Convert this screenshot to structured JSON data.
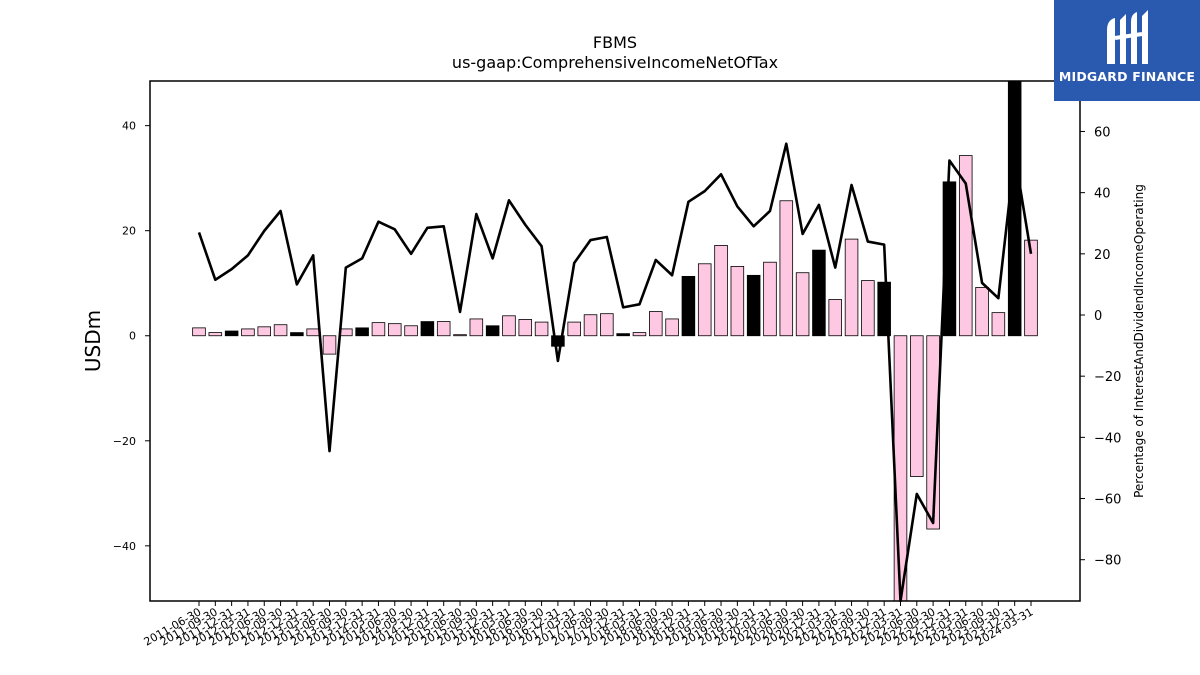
{
  "chart_data": {
    "type": "bar",
    "title": "FBMS",
    "subtitle": "us-gaap:ComprehensiveIncomeNetOfTax",
    "ylabel": "USDm",
    "y2label": "Percentage of InterestAndDividendIncomeOperating",
    "ylim": [
      -50.5,
      48.5
    ],
    "y2lim": [
      -93.5,
      76.5
    ],
    "yticks": [
      -40,
      -20,
      0,
      20,
      40
    ],
    "y2ticks": [
      -80,
      -60,
      -40,
      -20,
      0,
      20,
      40,
      60
    ],
    "categories": [
      "2011-06-30",
      "2011-09-30",
      "2011-12-31",
      "2012-03-31",
      "2012-06-30",
      "2012-09-30",
      "2012-12-31",
      "2013-03-31",
      "2013-06-30",
      "2013-09-30",
      "2013-12-31",
      "2014-03-31",
      "2014-06-30",
      "2014-09-30",
      "2014-12-31",
      "2015-03-31",
      "2015-06-30",
      "2015-09-30",
      "2015-12-31",
      "2016-03-31",
      "2016-06-30",
      "2016-09-30",
      "2016-12-31",
      "2017-03-31",
      "2017-06-30",
      "2017-09-30",
      "2017-12-31",
      "2018-03-31",
      "2018-06-30",
      "2018-09-30",
      "2018-12-31",
      "2019-03-31",
      "2019-06-30",
      "2019-09-30",
      "2019-12-31",
      "2020-03-31",
      "2020-06-30",
      "2020-09-30",
      "2020-12-31",
      "2021-03-31",
      "2021-06-30",
      "2021-09-30",
      "2021-12-31",
      "2022-03-31",
      "2022-06-30",
      "2022-09-30",
      "2022-12-31",
      "2023-03-31",
      "2023-06-30",
      "2023-09-30",
      "2023-12-31",
      "2024-03-31"
    ],
    "series": [
      {
        "type": "bar",
        "axis": "left",
        "values": [
          1.5,
          0.6,
          0.9,
          1.3,
          1.7,
          2.1,
          0.6,
          1.3,
          -3.5,
          1.3,
          1.5,
          2.5,
          2.3,
          1.9,
          2.7,
          2.7,
          0.2,
          3.2,
          1.9,
          3.8,
          3.1,
          2.6,
          -2.0,
          2.6,
          4.0,
          4.2,
          0.4,
          0.6,
          4.6,
          3.2,
          11.3,
          13.7,
          17.2,
          13.2,
          11.5,
          14.0,
          25.7,
          12.0,
          16.3,
          6.9,
          18.4,
          10.5,
          10.2,
          -50.5,
          -26.8,
          -36.8,
          29.3,
          34.3,
          9.2,
          4.4,
          48.5,
          18.2
        ],
        "highlight": [
          false,
          false,
          true,
          false,
          false,
          false,
          true,
          false,
          false,
          false,
          true,
          false,
          false,
          false,
          true,
          false,
          false,
          false,
          true,
          false,
          false,
          false,
          true,
          false,
          false,
          false,
          true,
          false,
          false,
          false,
          true,
          false,
          false,
          false,
          true,
          false,
          false,
          false,
          true,
          false,
          false,
          false,
          true,
          false,
          false,
          false,
          true,
          false,
          false,
          false,
          true,
          false
        ]
      },
      {
        "type": "line",
        "axis": "right",
        "values": [
          27.0,
          11.5,
          15.0,
          19.5,
          27.5,
          34.0,
          10.0,
          19.5,
          -44.5,
          15.5,
          18.5,
          30.5,
          28.0,
          20.0,
          28.5,
          29.0,
          1.0,
          33.0,
          18.5,
          37.5,
          29.5,
          22.5,
          -15.0,
          17.0,
          24.5,
          25.5,
          2.5,
          3.5,
          18.0,
          13.0,
          37.0,
          40.5,
          46.0,
          35.5,
          29.0,
          34.0,
          56.0,
          26.5,
          36.0,
          15.5,
          42.5,
          24.0,
          23.0,
          -93.5,
          -58.5,
          -68.0,
          50.5,
          43.0,
          10.5,
          5.5,
          52.5,
          20.0
        ]
      }
    ],
    "colors": {
      "bar": "#ffc8e2",
      "bar_highlight": "#000000",
      "line": "#000000"
    }
  },
  "logo": {
    "text": "MIDGARD FINANCE",
    "color": "#2a59b0"
  }
}
